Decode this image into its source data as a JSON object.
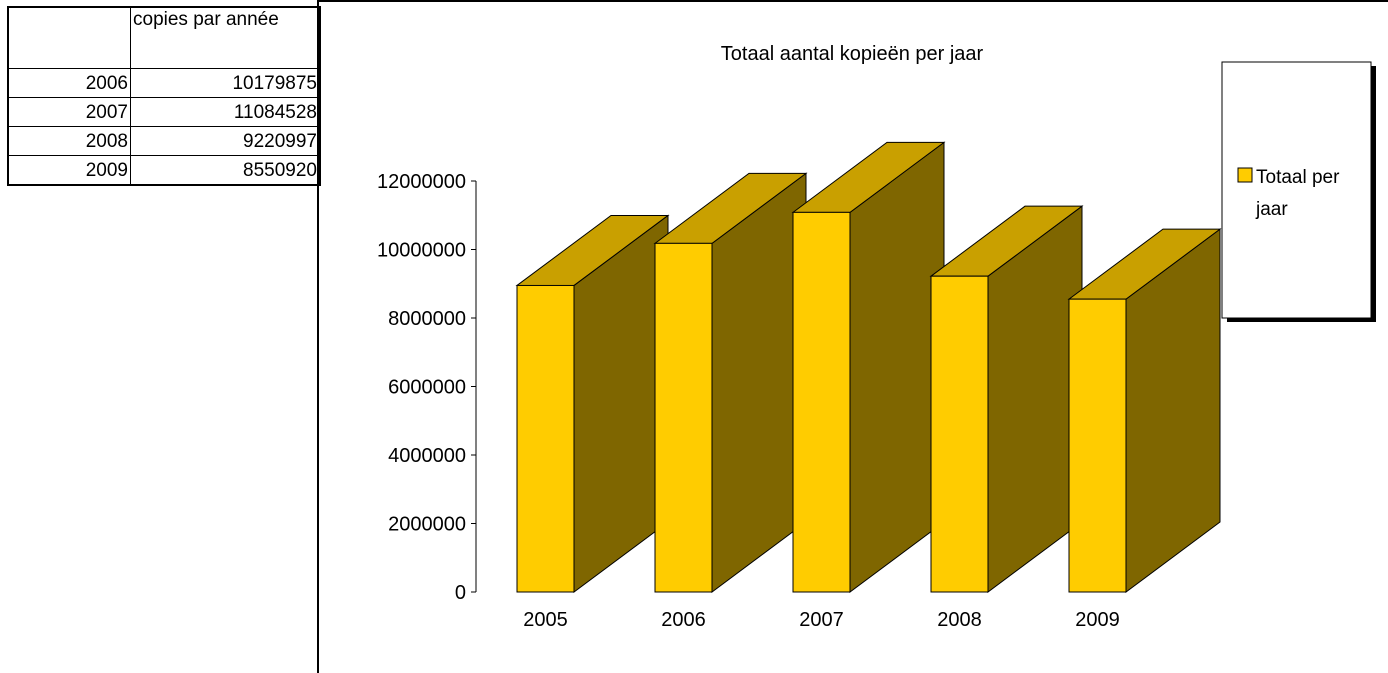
{
  "table": {
    "header": "copies par année",
    "rows": [
      {
        "year": "2006",
        "value": "10179875"
      },
      {
        "year": "2007",
        "value": "11084528"
      },
      {
        "year": "2008",
        "value": "9220997"
      },
      {
        "year": "2009",
        "value": "8550920"
      }
    ]
  },
  "chart_data": {
    "type": "bar",
    "title": "Totaal aantal kopieën per jaar",
    "categories": [
      "2005",
      "2006",
      "2007",
      "2008",
      "2009"
    ],
    "series": [
      {
        "name": "Totaal per jaar",
        "values": [
          8950000,
          10179875,
          11084528,
          9220997,
          8550920
        ]
      }
    ],
    "ylim": [
      0,
      12000000
    ],
    "yticks": [
      "0",
      "2000000",
      "4000000",
      "6000000",
      "8000000",
      "10000000",
      "12000000"
    ],
    "legend": "right",
    "colors": {
      "front": "#FFCC00",
      "side": "#7F6600",
      "top": "#C9A000"
    }
  }
}
